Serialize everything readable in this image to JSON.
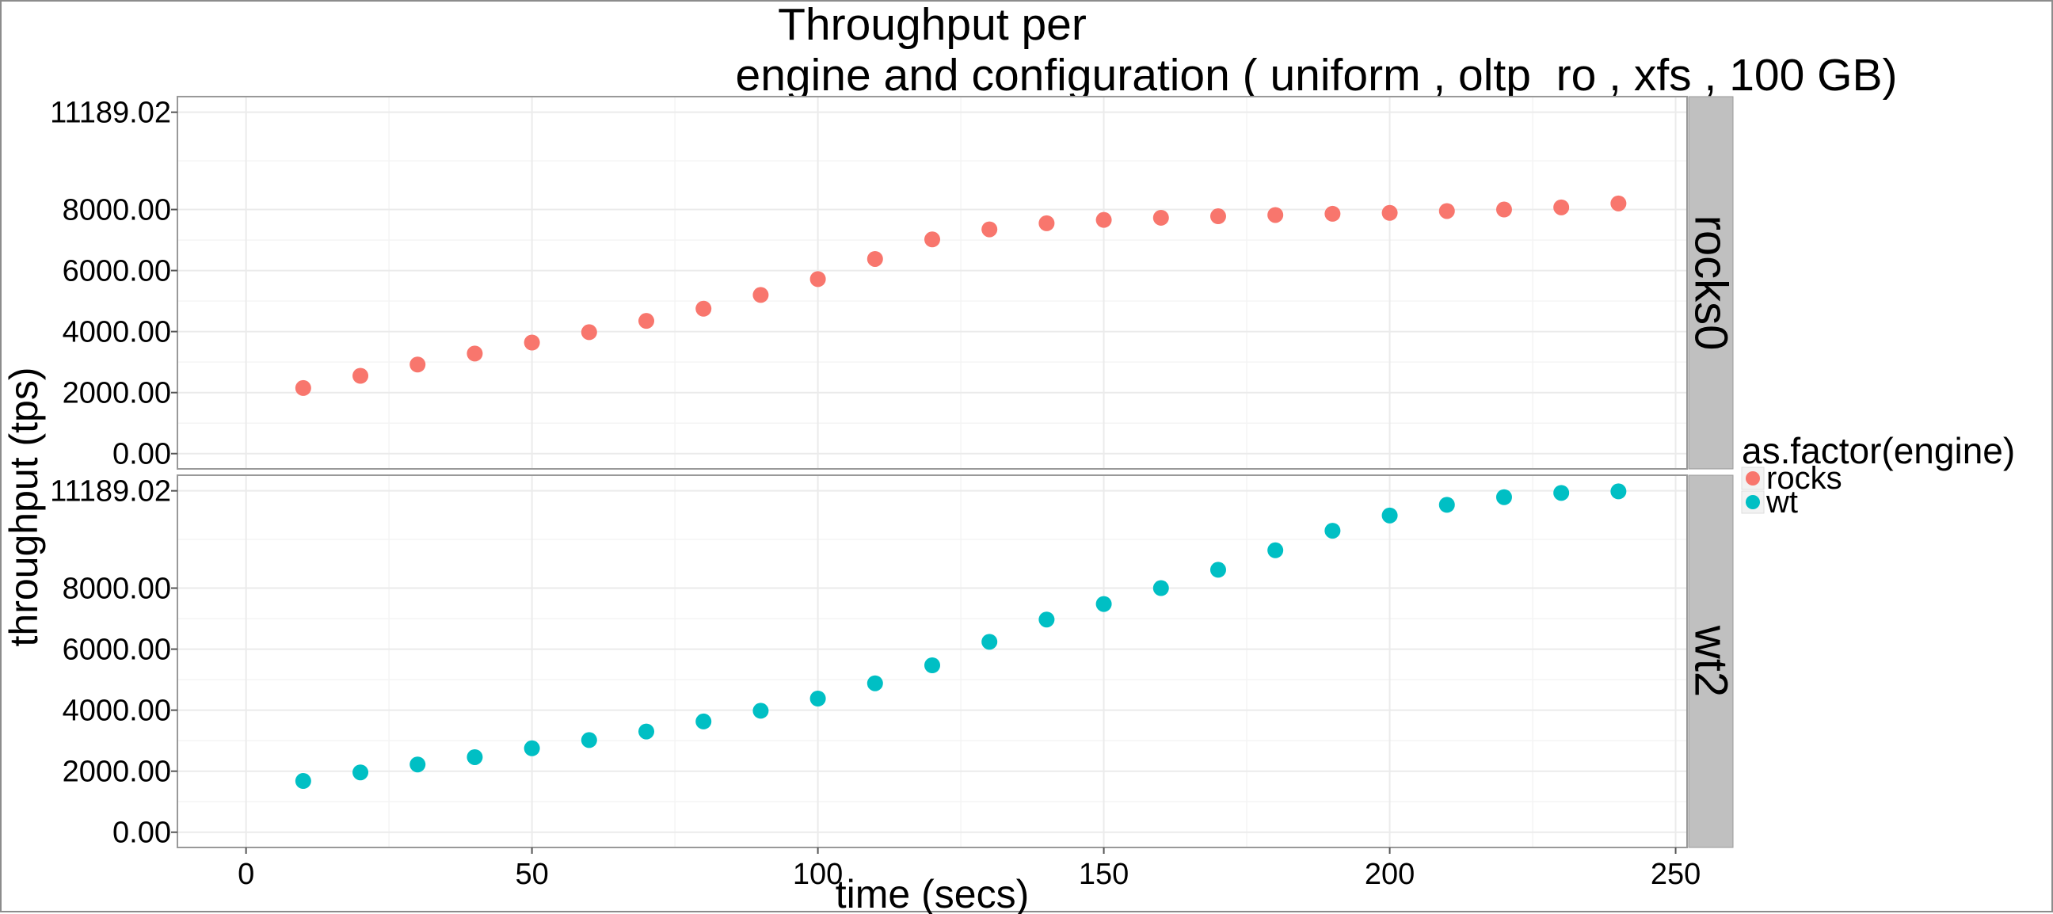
{
  "chart_data": {
    "type": "scatter",
    "title": [
      "Throughput per",
      "engine and configuration ( uniform , oltp_ro , xfs ,  100 GB)"
    ],
    "xlabel": "time (secs)",
    "ylabel": "throughput (tps)",
    "xlim": [
      -12,
      252
    ],
    "ylim": [
      -500,
      11700
    ],
    "x_ticks": [
      0,
      50,
      100,
      150,
      200,
      250
    ],
    "x_tick_labels": [
      "0",
      "50",
      "100",
      "150",
      "200",
      "250"
    ],
    "y_ticks": [
      0,
      2000,
      4000,
      6000,
      8000,
      11189.02
    ],
    "y_tick_labels": [
      "0.00",
      "2000.00",
      "4000.00",
      "6000.00",
      "8000.00",
      "11189.02"
    ],
    "grid": true,
    "legend": {
      "title": "as.factor(engine)",
      "position": "right",
      "entries": [
        {
          "label": "rocks",
          "color": "#F8766D"
        },
        {
          "label": "wt",
          "color": "#00BFC4"
        }
      ]
    },
    "panels": [
      {
        "strip": "rocks0",
        "engine": "rocks",
        "color": "#F8766D",
        "x": [
          10,
          20,
          30,
          40,
          50,
          60,
          70,
          80,
          90,
          100,
          110,
          120,
          130,
          140,
          150,
          160,
          170,
          180,
          190,
          200,
          210,
          220,
          230,
          240
        ],
        "y": [
          2150,
          2550,
          2920,
          3280,
          3640,
          3980,
          4350,
          4750,
          5200,
          5720,
          6380,
          7020,
          7350,
          7550,
          7660,
          7730,
          7780,
          7820,
          7860,
          7890,
          7950,
          8000,
          8070,
          8200
        ]
      },
      {
        "strip": "wt2",
        "engine": "wt",
        "color": "#00BFC4",
        "x": [
          10,
          20,
          30,
          40,
          50,
          60,
          70,
          80,
          90,
          100,
          110,
          120,
          130,
          140,
          150,
          160,
          170,
          180,
          190,
          200,
          210,
          220,
          230,
          240
        ],
        "y": [
          1680,
          1960,
          2220,
          2460,
          2750,
          3020,
          3300,
          3630,
          3980,
          4380,
          4880,
          5470,
          6240,
          6970,
          7480,
          8000,
          8600,
          9240,
          9880,
          10380,
          10730,
          10980,
          11120,
          11170
        ]
      }
    ]
  }
}
